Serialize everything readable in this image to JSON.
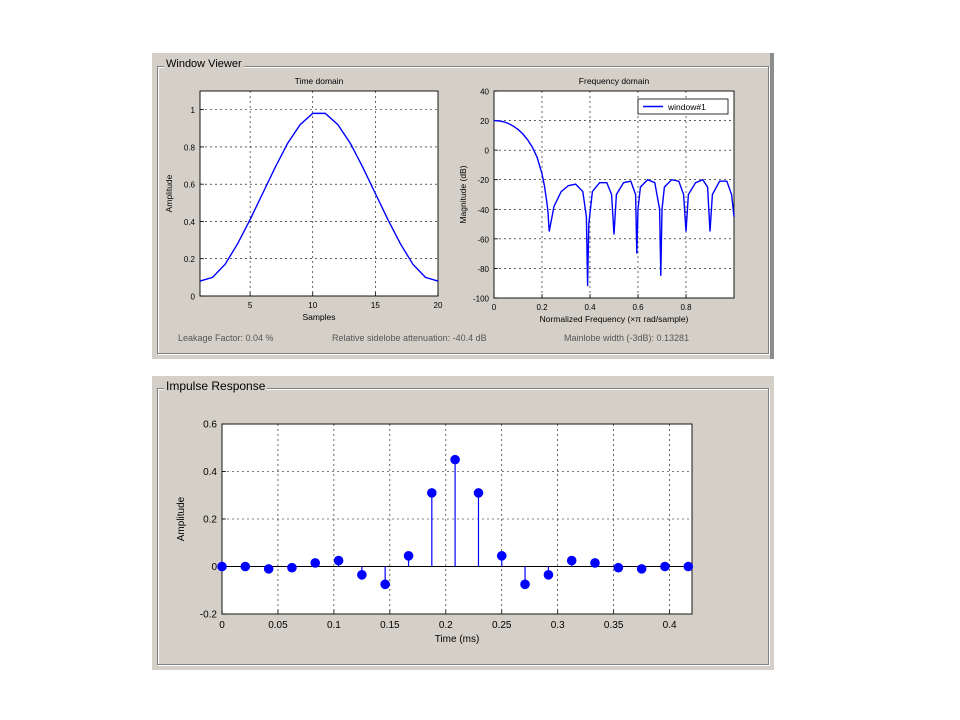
{
  "window_viewer": {
    "title": "Window Viewer",
    "leakage_factor": "Leakage Factor: 0.04 %",
    "sidelobe_attenuation": "Relative sidelobe attenuation: -40.4 dB",
    "mainlobe_width": "Mainlobe width (-3dB): 0.13281"
  },
  "impulse_panel": {
    "title": "Impulse Response"
  },
  "colors": {
    "series": "#0000ff",
    "panel_bg": "#d4d0c8",
    "grid": "#000000"
  },
  "chart_data": [
    {
      "type": "line",
      "title": "Time domain",
      "xlabel": "Samples",
      "ylabel": "Amplitude",
      "xlim": [
        1,
        20
      ],
      "ylim": [
        0,
        1.1
      ],
      "xticks": [
        5,
        10,
        15,
        20
      ],
      "yticks": [
        0,
        0.2,
        0.4,
        0.6,
        0.8,
        1
      ],
      "grid": true,
      "x": [
        1,
        2,
        3,
        4,
        5,
        6,
        7,
        8,
        9,
        10,
        11,
        12,
        13,
        14,
        15,
        16,
        17,
        18,
        19,
        20
      ],
      "y": [
        0.08,
        0.1,
        0.17,
        0.28,
        0.41,
        0.55,
        0.69,
        0.82,
        0.92,
        0.98,
        0.98,
        0.92,
        0.82,
        0.69,
        0.55,
        0.41,
        0.28,
        0.17,
        0.1,
        0.08
      ]
    },
    {
      "type": "line",
      "title": "Frequency domain",
      "xlabel": "Normalized Frequency  (×π rad/sample)",
      "ylabel": "Magnitude (dB)",
      "xlim": [
        0,
        1
      ],
      "ylim": [
        -100,
        40
      ],
      "xticks": [
        0,
        0.2,
        0.4,
        0.6,
        0.8
      ],
      "yticks": [
        -100,
        -80,
        -60,
        -40,
        -20,
        0,
        20,
        40
      ],
      "grid": true,
      "legend": "top-right",
      "series": [
        {
          "name": "window#1",
          "x": [
            0,
            0.02,
            0.04,
            0.06,
            0.08,
            0.1,
            0.12,
            0.14,
            0.16,
            0.18,
            0.2,
            0.21,
            0.22,
            0.225,
            0.23,
            0.25,
            0.28,
            0.31,
            0.34,
            0.37,
            0.385,
            0.39,
            0.395,
            0.41,
            0.44,
            0.47,
            0.49,
            0.5,
            0.51,
            0.54,
            0.57,
            0.59,
            0.595,
            0.6,
            0.61,
            0.64,
            0.67,
            0.69,
            0.695,
            0.7,
            0.71,
            0.74,
            0.77,
            0.79,
            0.8,
            0.81,
            0.84,
            0.87,
            0.89,
            0.9,
            0.91,
            0.94,
            0.97,
            0.99,
            1.0
          ],
          "y": [
            20,
            19.8,
            19.2,
            18,
            16.3,
            14,
            11,
            7,
            2,
            -5,
            -16,
            -24,
            -35,
            -42,
            -55,
            -38,
            -28,
            -24,
            -23,
            -28,
            -45,
            -92,
            -50,
            -28,
            -22,
            -22,
            -30,
            -57,
            -30,
            -22,
            -21,
            -30,
            -70,
            -40,
            -25,
            -20,
            -22,
            -40,
            -85,
            -40,
            -25,
            -20,
            -21,
            -30,
            -55,
            -30,
            -22,
            -20,
            -25,
            -55,
            -30,
            -21,
            -21,
            -30,
            -45
          ]
        }
      ]
    },
    {
      "type": "stem",
      "title": "",
      "xlabel": "Time (ms)",
      "ylabel": "Amplitude",
      "xlim": [
        0,
        0.42
      ],
      "ylim": [
        -0.2,
        0.6
      ],
      "xticks": [
        0,
        0.05,
        0.1,
        0.15,
        0.2,
        0.25,
        0.3,
        0.35,
        0.4
      ],
      "yticks": [
        -0.2,
        0,
        0.2,
        0.4,
        0.6
      ],
      "grid": true,
      "x": [
        0,
        0.0208,
        0.0417,
        0.0625,
        0.0833,
        0.1042,
        0.125,
        0.1458,
        0.1667,
        0.1875,
        0.2083,
        0.2292,
        0.25,
        0.2708,
        0.2917,
        0.3125,
        0.3333,
        0.3542,
        0.375,
        0.3958,
        0.4167
      ],
      "y": [
        0,
        0,
        -0.01,
        -0.005,
        0.015,
        0.025,
        -0.035,
        -0.075,
        0.045,
        0.31,
        0.45,
        0.31,
        0.045,
        -0.075,
        -0.035,
        0.025,
        0.015,
        -0.005,
        -0.01,
        0,
        0
      ]
    }
  ]
}
